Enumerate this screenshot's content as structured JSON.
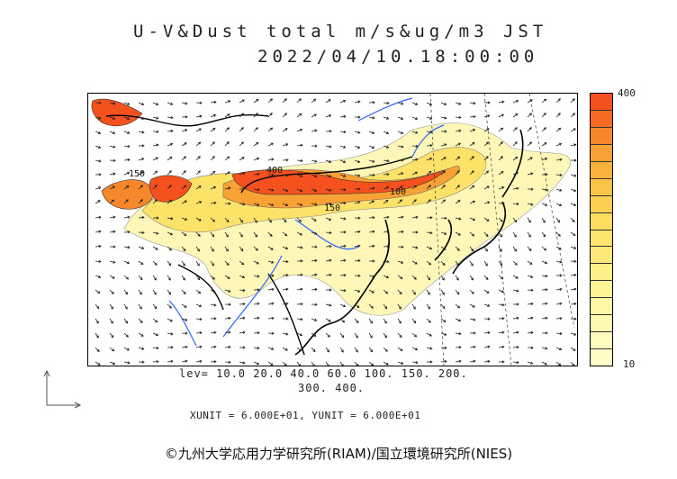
{
  "header": {
    "title": "U-V&Dust total m/s&ug/m3 JST",
    "datetime": "2022/04/10.18:00:00"
  },
  "colorbar": {
    "max_label": "400",
    "min_label": "10",
    "colors": [
      "#f4511e",
      "#f66a22",
      "#f7872b",
      "#f8a134",
      "#f9b33d",
      "#fac247",
      "#fbd052",
      "#fcdc5e",
      "#fde46c",
      "#fde97a",
      "#feef89",
      "#fef396",
      "#fef6a4",
      "#fef9b1",
      "#fefbbd",
      "#fffcc8"
    ]
  },
  "contour_labels": [
    "150",
    "400",
    "150",
    "100"
  ],
  "levels": {
    "line1": "lev= 10.0 20.0 40.0 60.0 100. 150. 200.",
    "line2": "300. 400."
  },
  "units": {
    "text": "XUNIT = 6.000E+01, YUNIT = 6.000E+01"
  },
  "footer": {
    "copyright": "©九州大学応用力学研究所(RIAM)/国立環境研究所(NIES)"
  }
}
